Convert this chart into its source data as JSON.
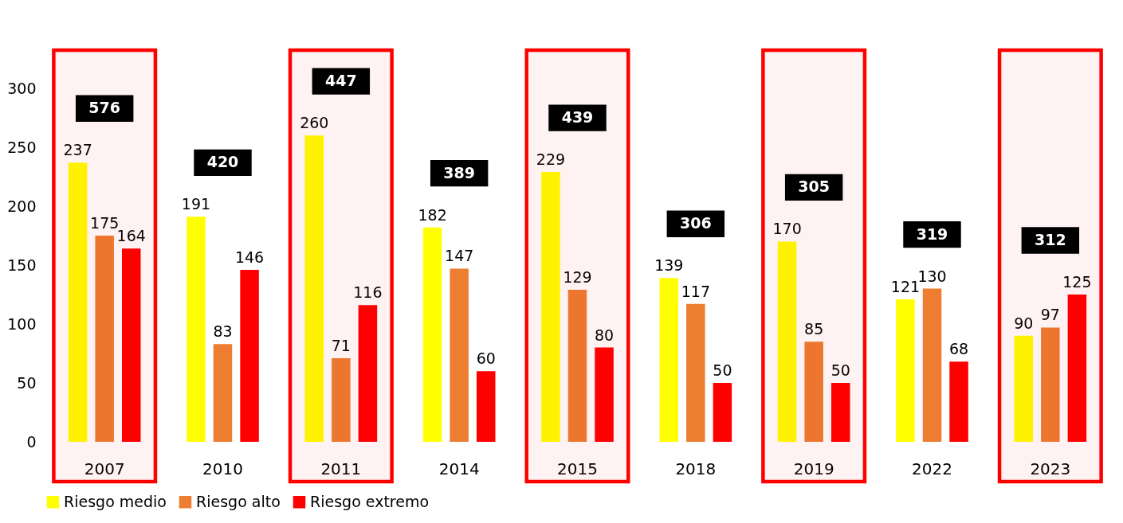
{
  "chart_data": {
    "type": "bar",
    "categories": [
      "2007",
      "2010",
      "2011",
      "2014",
      "2015",
      "2018",
      "2019",
      "2022",
      "2023"
    ],
    "series": [
      {
        "name": "Riesgo medio",
        "color": "#ffff00",
        "values": [
          237,
          191,
          260,
          182,
          229,
          139,
          170,
          121,
          90
        ]
      },
      {
        "name": "Riesgo alto",
        "color": "#ed7d31",
        "values": [
          175,
          83,
          71,
          147,
          129,
          117,
          85,
          130,
          97
        ]
      },
      {
        "name": "Riesgo extremo",
        "color": "#ff0000",
        "values": [
          164,
          146,
          116,
          60,
          80,
          50,
          50,
          68,
          125
        ]
      }
    ],
    "ylim": [
      0,
      300
    ],
    "yticks": [
      0,
      50,
      100,
      150,
      200,
      250,
      300
    ],
    "data_labels": true,
    "totals": [
      "576",
      "420",
      "447",
      "389",
      "439",
      "306",
      "305",
      "319",
      "312"
    ],
    "bands": [
      {
        "axis": "x",
        "from": "2007",
        "to": "2007",
        "color": "#ff0000"
      },
      {
        "axis": "x",
        "from": "2011",
        "to": "2011",
        "color": "#ff0000"
      },
      {
        "axis": "x",
        "from": "2015",
        "to": "2015",
        "color": "#ff0000"
      },
      {
        "axis": "x",
        "from": "2019",
        "to": "2019",
        "color": "#ff0000"
      },
      {
        "axis": "x",
        "from": "2023",
        "to": "2023",
        "color": "#ff0000"
      }
    ],
    "grid": false,
    "legend": "bottom"
  }
}
